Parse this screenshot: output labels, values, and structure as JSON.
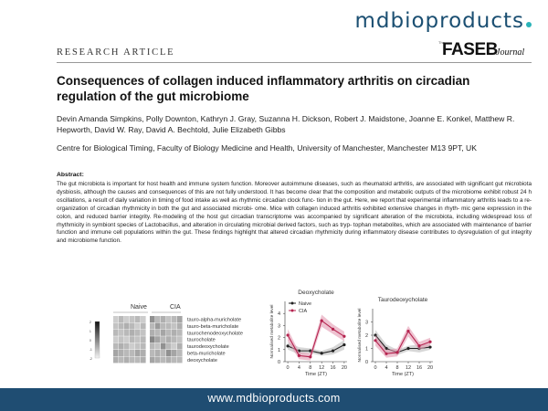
{
  "brand": {
    "pre": "mdb",
    "mid": "i",
    "post": "oproducts"
  },
  "article": {
    "type_label": "RESEARCH ARTICLE",
    "journal": {
      "the": "The",
      "name": "FASEB",
      "suffix": "Journal"
    },
    "title": "Consequences of collagen induced inflammatory arthritis on circadian regulation of the gut microbiome",
    "authors": "Devin Amanda Simpkins, Polly Downton, Kathryn J. Gray, Suzanna H. Dickson, Robert J. Maidstone, Joanne E. Konkel, Matthew R. Hepworth, David W. Ray, David A. Bechtold, Julie Elizabeth Gibbs",
    "affiliation": "Centre for Biological Timing, Faculty of Biology Medicine and Health, University of Manchester, Manchester M13 9PT, UK",
    "abstract_heading": "Abstract:",
    "abstract": "The gut microbiota is important for host health and immune system function. Moreover autoimmune diseases, such as rheumatoid arthritis, are associated with significant gut microbiota dysbiosis, although the causes and consequences of this are not fully understood. It has become clear that the composition and metabolic outputs of the microbiome exhibit robust 24 h oscillations, a result of daily variation in timing of food intake as well as rhythmic circadian clock func- tion in the gut. Here, we report that experimental inflammatory arthritis leads to a re-organization of circadian rhythmicity in both the gut and associated microbi- ome. Mice with collagen induced arthritis exhibited extensive changes in rhyth- mic gene expression in the colon, and reduced barrier integrity. Re-modeling of the host gut circadian transcriptome was accompanied by significant alteration of the microbiota, including widespread loss of rhythmicity in symbiont species of Lactobacillus, and alteration in circulating microbial derived factors, such as tryp- tophan metabolites, which are associated with maintenance of barrier function and immune cell populations within the gut. These findings highlight that altered circadian rhythmicity during inflammatory disease contributes to dysregulation of gut integrity and microbiome function."
  },
  "heatmap": {
    "groups": [
      "Naive",
      "CIA"
    ],
    "rows": [
      "tauro-alpha-muricholate",
      "tauro-beta-muricholate",
      "taurochenodeoxycholate",
      "taurocholate",
      "taurodeoxycholate",
      "beta-muricholate",
      "deoxycholate"
    ],
    "scale_ticks": [
      "2",
      "1",
      "0",
      "-1",
      "-2"
    ],
    "cells": [
      [
        0.2,
        0.3,
        0.2,
        0.25,
        0.3,
        0.2,
        0.5,
        0.3,
        0.35,
        0.25,
        0.3,
        0.4
      ],
      [
        0.25,
        0.3,
        0.35,
        0.3,
        0.2,
        0.3,
        0.3,
        0.45,
        0.3,
        0.3,
        0.25,
        0.35
      ],
      [
        0.3,
        0.25,
        0.3,
        0.35,
        0.3,
        0.25,
        0.35,
        0.3,
        0.4,
        0.3,
        0.35,
        0.3
      ],
      [
        0.2,
        0.25,
        0.2,
        0.3,
        0.25,
        0.3,
        0.55,
        0.4,
        0.3,
        0.35,
        0.3,
        0.25
      ],
      [
        0.3,
        0.35,
        0.3,
        0.2,
        0.25,
        0.3,
        0.3,
        0.25,
        0.5,
        0.3,
        0.2,
        0.35
      ],
      [
        0.4,
        0.35,
        0.3,
        0.3,
        0.4,
        0.35,
        0.3,
        0.35,
        0.3,
        0.5,
        0.4,
        0.3
      ],
      [
        0.35,
        0.3,
        0.35,
        0.3,
        0.3,
        0.35,
        0.4,
        0.35,
        0.3,
        0.35,
        0.3,
        0.3
      ]
    ]
  },
  "chart_data": [
    {
      "type": "line",
      "title": "Deoxycholate",
      "xlabel": "Time (ZT)",
      "ylabel": "Normalised metabolite level",
      "x": [
        0,
        4,
        8,
        12,
        16,
        20
      ],
      "xlim": [
        -1,
        21
      ],
      "ylim": [
        0,
        5
      ],
      "xticks": [
        0,
        4,
        8,
        12,
        16,
        20
      ],
      "yticks": [
        0,
        1,
        2,
        3,
        4
      ],
      "legend": [
        "Naive",
        "CIA"
      ],
      "series": [
        {
          "name": "Naive",
          "color": "#222222",
          "band": "#bdbdbd",
          "values": [
            1.3,
            0.9,
            0.9,
            0.7,
            0.9,
            1.4
          ],
          "err": [
            0.3,
            0.3,
            0.2,
            0.2,
            0.3,
            0.4
          ]
        },
        {
          "name": "CIA",
          "color": "#b5234f",
          "band": "#e39ab1",
          "values": [
            2.2,
            0.5,
            0.4,
            3.4,
            2.7,
            2.1
          ],
          "err": [
            0.5,
            0.3,
            0.3,
            0.5,
            0.4,
            0.4
          ]
        }
      ]
    },
    {
      "type": "line",
      "title": "Taurodeoxycholate",
      "xlabel": "Time (ZT)",
      "ylabel": "Normalised metabolite level",
      "x": [
        0,
        4,
        8,
        12,
        16,
        20
      ],
      "xlim": [
        -1,
        21
      ],
      "ylim": [
        0,
        4
      ],
      "xticks": [
        0,
        4,
        8,
        12,
        16,
        20
      ],
      "yticks": [
        0,
        1,
        2,
        3
      ],
      "series": [
        {
          "name": "Naive",
          "color": "#222222",
          "band": "#bdbdbd",
          "values": [
            2.0,
            1.0,
            0.7,
            1.0,
            1.0,
            1.1
          ],
          "err": [
            0.4,
            0.3,
            0.2,
            0.2,
            0.3,
            0.2
          ]
        },
        {
          "name": "CIA",
          "color": "#b5234f",
          "band": "#e39ab1",
          "values": [
            1.6,
            0.6,
            0.7,
            2.3,
            1.2,
            1.5
          ],
          "err": [
            0.4,
            0.3,
            0.3,
            0.4,
            0.3,
            0.3
          ]
        }
      ]
    }
  ],
  "footer": {
    "url": "www.mdbioproducts.com"
  }
}
